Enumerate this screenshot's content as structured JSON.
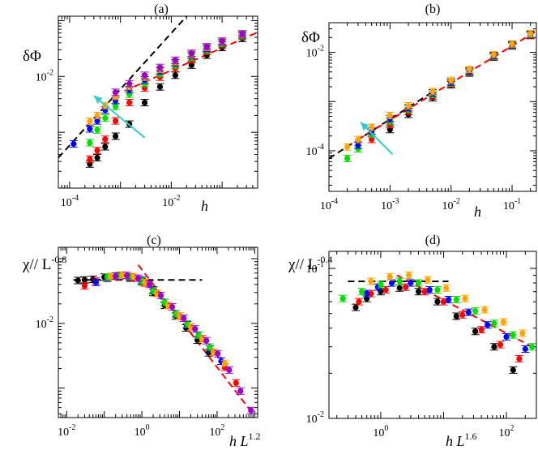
{
  "chart_data": [
    {
      "type": "scatter",
      "panel": "(a)",
      "ylabel": "δΦ",
      "xlabel": "h",
      "xscale": "log",
      "yscale": "log",
      "xlim": [
        6e-05,
        0.5
      ],
      "ylim": [
        0.0001,
        0.12
      ],
      "x_ticks": [
        {
          "v": 0.0001,
          "base": "10",
          "exp": "-4"
        },
        {
          "v": 0.01,
          "base": "10",
          "exp": "-2"
        }
      ],
      "y_ticks": [
        {
          "v": 0.01,
          "base": "10",
          "exp": "-2"
        }
      ],
      "series": [
        {
          "name": "black",
          "color": "#000000",
          "x": [
            0.00025,
            0.00035,
            0.0005,
            0.0008,
            0.0015,
            0.003,
            0.006,
            0.012,
            0.025,
            0.05,
            0.1,
            0.25
          ],
          "y": [
            0.00027,
            0.00035,
            0.00055,
            0.00085,
            0.0014,
            0.0034,
            0.0065,
            0.0105,
            0.016,
            0.024,
            0.033,
            0.048
          ]
        },
        {
          "name": "red",
          "color": "#ff0000",
          "x": [
            0.00025,
            0.00035,
            0.0005,
            0.0008,
            0.0015,
            0.003,
            0.006,
            0.012,
            0.025,
            0.05,
            0.1,
            0.25
          ],
          "y": [
            0.00033,
            0.00047,
            0.00075,
            0.0016,
            0.0034,
            0.0062,
            0.0097,
            0.014,
            0.02,
            0.028,
            0.037,
            0.052
          ]
        },
        {
          "name": "green",
          "color": "#00dd00",
          "x": [
            0.00025,
            0.00035,
            0.0005,
            0.0008,
            0.0015,
            0.003,
            0.006,
            0.012,
            0.025,
            0.05,
            0.1,
            0.25
          ],
          "y": [
            0.00065,
            0.0011,
            0.0018,
            0.0029,
            0.0048,
            0.0075,
            0.0112,
            0.016,
            0.022,
            0.03,
            0.039,
            0.054
          ]
        },
        {
          "name": "blue",
          "color": "#0000ff",
          "x": [
            0.00012,
            0.00025,
            0.00035,
            0.0005,
            0.0008,
            0.0015,
            0.003,
            0.006,
            0.012,
            0.025,
            0.05,
            0.1,
            0.25
          ],
          "y": [
            0.00062,
            0.00115,
            0.0016,
            0.0025,
            0.0037,
            0.0058,
            0.0087,
            0.0125,
            0.0175,
            0.024,
            0.032,
            0.041,
            0.056
          ]
        },
        {
          "name": "orange",
          "color": "#ffa500",
          "x": [
            0.00025,
            0.00035,
            0.0005,
            0.0008,
            0.0015,
            0.003,
            0.006,
            0.012,
            0.025,
            0.05,
            0.1,
            0.25
          ],
          "y": [
            0.00158,
            0.002,
            0.003,
            0.0044,
            0.0066,
            0.0097,
            0.0135,
            0.0185,
            0.025,
            0.033,
            0.042,
            0.057
          ]
        },
        {
          "name": "purple",
          "color": "#9900cc",
          "x": [
            0.0008,
            0.0015,
            0.003,
            0.006,
            0.012,
            0.025,
            0.05,
            0.1,
            0.25
          ],
          "y": [
            0.0052,
            0.0074,
            0.0105,
            0.0145,
            0.0195,
            0.026,
            0.034,
            0.043,
            0.058
          ]
        }
      ],
      "fit_lines": [
        {
          "style": "black-dashed",
          "x": [
            6e-05,
            0.02
          ],
          "y": [
            0.00035,
            0.12
          ]
        },
        {
          "style": "red-dashed",
          "curve": "power-law",
          "x": [
            0.0012,
            0.5
          ],
          "y": [
            0.0055,
            0.062
          ]
        }
      ],
      "arrow": {
        "from": [
          0.003,
          0.0008
        ],
        "to": [
          0.0003,
          0.0045
        ],
        "color": "#33cccc"
      }
    },
    {
      "type": "scatter",
      "panel": "(b)",
      "ylabel": "δΦ",
      "xlabel": "h",
      "xscale": "log",
      "yscale": "log",
      "xlim": [
        0.0001,
        0.25
      ],
      "ylim": [
        1.5e-05,
        0.04
      ],
      "x_ticks": [
        {
          "v": 0.0001,
          "base": "10",
          "exp": "-4"
        },
        {
          "v": 0.001,
          "base": "10",
          "exp": "-3"
        },
        {
          "v": 0.01,
          "base": "10",
          "exp": "-2"
        },
        {
          "v": 0.1,
          "base": "10",
          "exp": "-1"
        }
      ],
      "y_ticks": [
        {
          "v": 0.0001,
          "base": "10",
          "exp": "-4"
        },
        {
          "v": 0.01,
          "base": "10",
          "exp": "-2"
        }
      ],
      "series": [
        {
          "name": "black",
          "color": "#000000",
          "x": [
            0.001,
            0.002,
            0.005,
            0.01,
            0.02,
            0.05,
            0.1,
            0.2
          ],
          "y": [
            0.00027,
            0.00055,
            0.0012,
            0.0022,
            0.0038,
            0.008,
            0.0135,
            0.022
          ]
        },
        {
          "name": "red",
          "color": "#ff0000",
          "x": [
            0.0005,
            0.001,
            0.002,
            0.005,
            0.01,
            0.02,
            0.05,
            0.1,
            0.2
          ],
          "y": [
            0.00017,
            0.00034,
            0.00063,
            0.0013,
            0.0023,
            0.004,
            0.0082,
            0.0138,
            0.0225
          ]
        },
        {
          "name": "green",
          "color": "#00dd00",
          "x": [
            0.0002,
            0.0003,
            0.0005,
            0.001,
            0.002,
            0.005,
            0.01,
            0.02,
            0.05,
            0.1,
            0.2
          ],
          "y": [
            7e-05,
            0.00011,
            0.00022,
            0.0004,
            0.0007,
            0.0014,
            0.0024,
            0.0041,
            0.0084,
            0.014,
            0.023
          ]
        },
        {
          "name": "blue",
          "color": "#0000ff",
          "x": [
            0.0003,
            0.0005,
            0.001,
            0.002,
            0.005,
            0.01,
            0.02,
            0.05,
            0.1,
            0.2
          ],
          "y": [
            0.00013,
            0.00025,
            0.00045,
            0.00075,
            0.0015,
            0.0025,
            0.0042,
            0.0086,
            0.0143,
            0.0235
          ]
        },
        {
          "name": "orange",
          "color": "#ffa500",
          "x": [
            0.0002,
            0.0003,
            0.0005,
            0.001,
            0.002,
            0.005,
            0.01,
            0.02,
            0.05,
            0.1,
            0.2
          ],
          "y": [
            0.00012,
            0.00017,
            0.0003,
            0.00052,
            0.00082,
            0.0016,
            0.0027,
            0.0045,
            0.009,
            0.0148,
            0.024
          ]
        }
      ],
      "fit_lines": [
        {
          "style": "black-dashed",
          "x": [
            0.0001,
            0.0055
          ],
          "y": [
            7e-05,
            0.0017
          ]
        },
        {
          "style": "red-dashed",
          "x": [
            0.0003,
            0.25
          ],
          "y": [
            0.00017,
            0.027
          ]
        }
      ],
      "arrow": {
        "from": [
          0.0011,
          8.5e-05
        ],
        "to": [
          0.00033,
          0.00038
        ],
        "color": "#33cccc"
      }
    },
    {
      "type": "scatter",
      "panel": "(c)",
      "ylabel": "χ// L",
      "ylabel_exp": "-0.8",
      "xlabel": "h L",
      "xlabel_exp": "1.2",
      "xscale": "log",
      "yscale": "log",
      "xlim": [
        0.006,
        1200
      ],
      "ylim": [
        0.00035,
        0.15
      ],
      "x_ticks": [
        {
          "v": 0.01,
          "base": "10",
          "exp": "-2"
        },
        {
          "v": 1,
          "base": "10",
          "exp": "0"
        },
        {
          "v": 100,
          "base": "10",
          "exp": "2"
        }
      ],
      "y_ticks": [
        {
          "v": 0.01,
          "base": "10",
          "exp": "-2"
        }
      ],
      "series": [
        {
          "name": "black",
          "color": "#000000",
          "x": [
            0.02,
            0.03,
            0.05,
            0.1,
            0.2,
            0.5,
            1,
            2,
            4,
            8,
            15,
            30,
            60
          ],
          "y": [
            0.046,
            0.047,
            0.048,
            0.052,
            0.053,
            0.05,
            0.044,
            0.03,
            0.019,
            0.013,
            0.0085,
            0.0055,
            0.0035
          ]
        },
        {
          "name": "red",
          "color": "#ff0000",
          "x": [
            0.03,
            0.06,
            0.12,
            0.25,
            0.6,
            1.2,
            2.5,
            5,
            10,
            20,
            40,
            80,
            160,
            320
          ],
          "y": [
            0.038,
            0.045,
            0.05,
            0.053,
            0.05,
            0.042,
            0.029,
            0.019,
            0.013,
            0.0088,
            0.0058,
            0.0036,
            0.0021,
            0.0012
          ]
        },
        {
          "name": "blue",
          "color": "#0000ff",
          "x": [
            0.06,
            0.12,
            0.25,
            0.5,
            1,
            2,
            4,
            8,
            16,
            32,
            64,
            128
          ],
          "y": [
            0.043,
            0.05,
            0.054,
            0.052,
            0.047,
            0.033,
            0.021,
            0.014,
            0.0095,
            0.0065,
            0.004,
            0.0026
          ]
        },
        {
          "name": "green",
          "color": "#00dd00",
          "x": [
            0.12,
            0.25,
            0.5,
            1,
            2,
            4,
            8,
            16,
            32,
            64
          ],
          "y": [
            0.052,
            0.055,
            0.053,
            0.045,
            0.032,
            0.021,
            0.014,
            0.0098,
            0.0066,
            0.0043
          ]
        },
        {
          "name": "orange",
          "color": "#ffa500",
          "x": [
            0.15,
            0.3,
            0.6,
            1.2,
            2.5,
            5,
            10,
            20,
            40,
            80,
            160
          ],
          "y": [
            0.053,
            0.056,
            0.053,
            0.043,
            0.029,
            0.019,
            0.013,
            0.0088,
            0.0057,
            0.0036,
            0.0024
          ]
        },
        {
          "name": "purple",
          "color": "#9900cc",
          "x": [
            0.2,
            0.4,
            0.8,
            1.6,
            3.2,
            6.4,
            13,
            26,
            52,
            104,
            210,
            420,
            800
          ],
          "y": [
            0.054,
            0.055,
            0.05,
            0.04,
            0.027,
            0.018,
            0.012,
            0.0082,
            0.0054,
            0.0034,
            0.0019,
            0.0009,
            0.00045
          ]
        }
      ],
      "fit_lines": [
        {
          "style": "black-dashed",
          "x": [
            0.015,
            40
          ],
          "y": [
            0.047,
            0.047
          ]
        },
        {
          "style": "red-dashed",
          "x": [
            0.8,
            900
          ],
          "y": [
            0.08,
            0.0004
          ]
        }
      ]
    },
    {
      "type": "scatter",
      "panel": "(d)",
      "ylabel": "χ// L",
      "ylabel_exp": "-0.4",
      "xlabel": "h L",
      "xlabel_exp": "1.6",
      "xscale": "log",
      "yscale": "log",
      "xlim": [
        0.15,
        300
      ],
      "ylim": [
        0.01,
        0.13
      ],
      "x_ticks": [
        {
          "v": 1,
          "base": "10",
          "exp": "0"
        },
        {
          "v": 100,
          "base": "10",
          "exp": "2"
        }
      ],
      "y_ticks": [
        {
          "v": 0.1,
          "base": "10",
          "exp": "-1"
        },
        {
          "v": 0.01,
          "base": "10",
          "exp": "-2"
        }
      ],
      "series": [
        {
          "name": "black",
          "color": "#000000",
          "x": [
            0.4,
            0.6,
            1,
            2,
            4,
            8,
            16,
            32,
            64,
            128
          ],
          "y": [
            0.055,
            0.063,
            0.07,
            0.074,
            0.07,
            0.06,
            0.048,
            0.038,
            0.03,
            0.021
          ]
        },
        {
          "name": "red",
          "color": "#ff0000",
          "x": [
            0.45,
            0.7,
            1.2,
            2.5,
            5,
            10,
            20,
            40,
            80,
            160
          ],
          "y": [
            0.06,
            0.068,
            0.072,
            0.075,
            0.07,
            0.06,
            0.049,
            0.039,
            0.031,
            0.025
          ]
        },
        {
          "name": "blue",
          "color": "#0000ff",
          "x": [
            0.6,
            0.9,
            1.5,
            3,
            6,
            12,
            25,
            50,
            100,
            200
          ],
          "y": [
            0.068,
            0.075,
            0.08,
            0.08,
            0.072,
            0.062,
            0.051,
            0.042,
            0.035,
            0.029
          ]
        },
        {
          "name": "green",
          "color": "#00dd00",
          "x": [
            0.25,
            0.5,
            1,
            2,
            4,
            8,
            16,
            32,
            64,
            128,
            256
          ],
          "y": [
            0.063,
            0.07,
            0.078,
            0.082,
            0.08,
            0.072,
            0.062,
            0.052,
            0.043,
            0.036,
            0.03
          ]
        },
        {
          "name": "orange",
          "color": "#ffa500",
          "x": [
            0.7,
            1.4,
            2.8,
            5.6,
            11,
            22,
            45,
            90,
            180
          ],
          "y": [
            0.082,
            0.088,
            0.09,
            0.084,
            0.074,
            0.063,
            0.053,
            0.044,
            0.037
          ]
        }
      ],
      "fit_lines": [
        {
          "style": "black-dashed",
          "x": [
            0.3,
            12
          ],
          "y": [
            0.082,
            0.082
          ]
        },
        {
          "style": "red-dashed",
          "x": [
            1.8,
            300
          ],
          "y": [
            0.09,
            0.029
          ]
        }
      ]
    }
  ]
}
